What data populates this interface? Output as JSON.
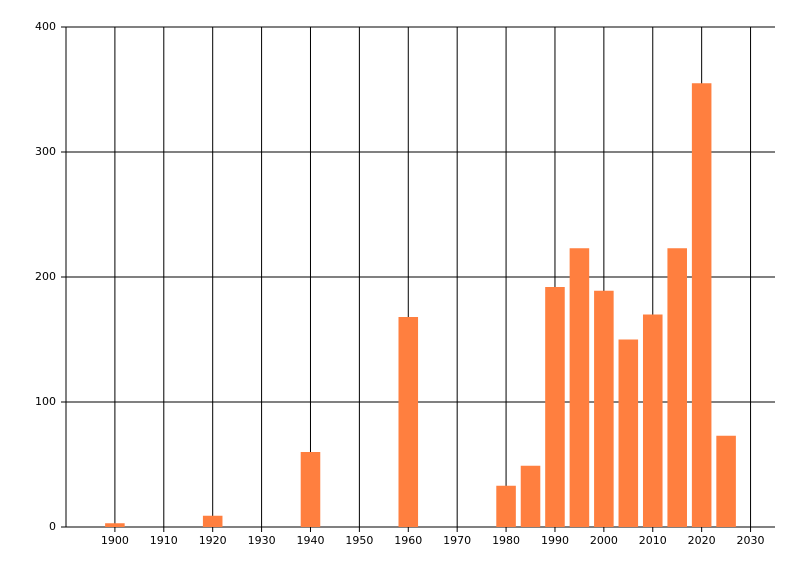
{
  "chart_data": {
    "type": "bar",
    "x": [
      1900,
      1920,
      1940,
      1960,
      1980,
      1985,
      1990,
      1995,
      2000,
      2005,
      2010,
      2015,
      2020,
      2025
    ],
    "values": [
      3,
      9,
      60,
      168,
      33,
      49,
      192,
      223,
      189,
      150,
      170,
      223,
      355,
      73
    ],
    "color": "#ff7f3f",
    "xlim": [
      1890,
      2035
    ],
    "xticks": [
      1900,
      1910,
      1920,
      1930,
      1940,
      1950,
      1960,
      1970,
      1980,
      1990,
      2000,
      2010,
      2020,
      2030
    ],
    "ylim": [
      0,
      400
    ],
    "yticks": [
      0,
      100,
      200,
      300,
      400
    ],
    "bar_width": 4,
    "grid": true
  }
}
